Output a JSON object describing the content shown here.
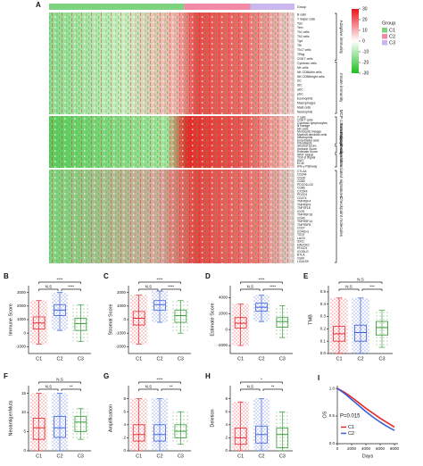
{
  "chart_data": [
    {
      "type": "heatmap",
      "panel": "A",
      "group_label": "Group",
      "groups": [
        {
          "name": "C1",
          "color": "#7ed37e"
        },
        {
          "name": "C2",
          "color": "#f08aa8"
        },
        {
          "name": "C3",
          "color": "#c9b7ee"
        }
      ],
      "color_scale": {
        "ticks": [
          30,
          20,
          10,
          0,
          -10,
          -20,
          -30
        ],
        "lim": [
          -30,
          30
        ],
        "high": "#e8141a",
        "mid": "#ffffff",
        "low": "#1fbf1f"
      },
      "sections": [
        {
          "rows": [
            "B cells",
            "T helper cells",
            "Tcm",
            "Tem",
            "Th1 cells",
            "Th2 cells",
            "Tgd",
            "Tfh",
            "Th17 cells",
            "TReg",
            "CD8 T cells",
            "Cytotoxic cells",
            "NK cells",
            "NK CD56dim cells",
            "NK CD56bright cells",
            "DC",
            "iDC",
            "aDC",
            "pDC",
            "Eosinophils",
            "Macrophages",
            "Mast cells",
            "Neutrophils"
          ],
          "groups": [
            {
              "label": "Adaptive immunity",
              "span": 11
            },
            {
              "label": "Innate immunity",
              "span": 12
            }
          ]
        },
        {
          "rows": [
            "T cells",
            "CD8 T cells",
            "Cytotoxic lymphocytes",
            "B lineage",
            "NK cells",
            "Monocytic lineage",
            "Myeloid dendritic cells",
            "Neutrophils",
            "Endothelial cells",
            "Fibroblasts",
            "Stromal Score",
            "Immune Score",
            "Estimate Score",
            "WNT Signal",
            "TGF-β Signal",
            "EMT",
            "ECM",
            "IFN-γ Pathway"
          ],
          "groups": [
            {
              "label": "MCP counter algorithm",
              "span": 10
            },
            {
              "label": "Estimate algorithm",
              "span": 3
            },
            {
              "label": "Tumor progressive associated signatures",
              "span": 5
            }
          ]
        },
        {
          "rows": [
            "CTLA4",
            "CD244",
            "CD28",
            "CD80",
            "PDCD1LG2",
            "CD86",
            "CXCR4",
            "PDCD1",
            "CD274",
            "TNFRSF4",
            "TNFRSF9",
            "TNFSF18",
            "ICOS",
            "TNFRSF18",
            "CD40",
            "TNFRSF14",
            "TNFRSF8",
            "CD27",
            "CD40LG",
            "TIGIT",
            "LAG3",
            "IDO1",
            "HAVCR2",
            "PDCD1",
            "ICOSLG",
            "BTLA",
            "VSIR",
            "LGALS9"
          ],
          "groups": [
            {
              "label": "Checkpoint molecules",
              "span": 28
            }
          ]
        }
      ]
    },
    {
      "type": "box",
      "panel": "B",
      "ylabel": "Immune Score",
      "categories": [
        "C1",
        "C2",
        "C3"
      ],
      "colors": [
        "#e8262c",
        "#3b5fd9",
        "#3a9a3a"
      ],
      "ylim": [
        -1500,
        3500
      ],
      "yticks": [
        -1000,
        0,
        1000,
        2000,
        3000
      ],
      "significance": [
        "N.S",
        "****",
        "****"
      ],
      "stats": [
        {
          "low": -800,
          "q1": 300,
          "median": 750,
          "q3": 1200,
          "high": 2400
        },
        {
          "low": 200,
          "q1": 1300,
          "median": 1700,
          "q3": 2100,
          "high": 3000
        },
        {
          "low": -600,
          "q1": 200,
          "median": 700,
          "q3": 1100,
          "high": 2100
        }
      ]
    },
    {
      "type": "box",
      "panel": "C",
      "ylabel": "Stromal Score",
      "categories": [
        "C1",
        "C2",
        "C3"
      ],
      "colors": [
        "#e8262c",
        "#3b5fd9",
        "#3a9a3a"
      ],
      "ylim": [
        -2500,
        2500
      ],
      "yticks": [
        -2000,
        -1000,
        0,
        1000,
        2000
      ],
      "significance": [
        "N.S",
        "****",
        "****"
      ],
      "stats": [
        {
          "low": -1800,
          "q1": -400,
          "median": 100,
          "q3": 600,
          "high": 1800
        },
        {
          "low": -200,
          "q1": 700,
          "median": 1100,
          "q3": 1400,
          "high": 2100
        },
        {
          "low": -1000,
          "q1": -200,
          "median": 300,
          "q3": 700,
          "high": 1400
        }
      ]
    },
    {
      "type": "box",
      "panel": "D",
      "ylabel": "Estimate Score",
      "categories": [
        "C1",
        "C2",
        "C3"
      ],
      "colors": [
        "#e8262c",
        "#3b5fd9",
        "#3a9a3a"
      ],
      "ylim": [
        -3000,
        5500
      ],
      "yticks": [
        -2000,
        0,
        2000,
        4000
      ],
      "significance": [
        "N.S",
        "****",
        "****"
      ],
      "stats": [
        {
          "low": -2000,
          "q1": 200,
          "median": 800,
          "q3": 1500,
          "high": 3200
        },
        {
          "low": 1000,
          "q1": 2300,
          "median": 2800,
          "q3": 3300,
          "high": 4300
        },
        {
          "low": -1000,
          "q1": 300,
          "median": 1000,
          "q3": 1500,
          "high": 3000
        }
      ]
    },
    {
      "type": "box",
      "panel": "E",
      "ylabel": "TMB",
      "categories": [
        "C1",
        "C2",
        "C3"
      ],
      "colors": [
        "#e8262c",
        "#3b5fd9",
        "#3a9a3a"
      ],
      "ylim": [
        0,
        0.55
      ],
      "yticks": [
        {
          "value": 0,
          "label": "0.0"
        },
        0.1,
        0.2,
        0.3,
        0.4,
        0.5
      ],
      "significance": [
        "N.S",
        "N.S",
        "***"
      ],
      "stats": [
        {
          "low": 0,
          "q1": 0.1,
          "median": 0.16,
          "q3": 0.22,
          "high": 0.45
        },
        {
          "low": 0,
          "q1": 0.1,
          "median": 0.17,
          "q3": 0.23,
          "high": 0.45
        },
        {
          "low": 0.05,
          "q1": 0.15,
          "median": 0.21,
          "q3": 0.26,
          "high": 0.35
        }
      ]
    },
    {
      "type": "box",
      "panel": "F",
      "ylabel": "NeoantigenMuts",
      "categories": [
        "C1",
        "C2",
        "C3"
      ],
      "colors": [
        "#e8262c",
        "#3b5fd9",
        "#3a9a3a"
      ],
      "ylim": [
        0,
        17
      ],
      "yticks": [
        0,
        5,
        10,
        15
      ],
      "significance": [
        "N.S",
        "N.S",
        "**"
      ],
      "stats": [
        {
          "low": 0,
          "q1": 3,
          "median": 6,
          "q3": 8.5,
          "high": 15
        },
        {
          "low": 0,
          "q1": 3.5,
          "median": 6,
          "q3": 9,
          "high": 15
        },
        {
          "low": 3,
          "q1": 5,
          "median": 7.5,
          "q3": 9,
          "high": 11
        }
      ]
    },
    {
      "type": "box",
      "panel": "G",
      "ylabel": "Amplification",
      "categories": [
        "C1",
        "C2",
        "C3"
      ],
      "colors": [
        "#e8262c",
        "#3b5fd9",
        "#3a9a3a"
      ],
      "ylim": [
        0,
        10
      ],
      "yticks": [
        0,
        2,
        4,
        6,
        8
      ],
      "significance": [
        "N.S",
        "****",
        "**"
      ],
      "stats": [
        {
          "low": 0,
          "q1": 1.5,
          "median": 2.5,
          "q3": 4,
          "high": 8
        },
        {
          "low": 0,
          "q1": 1.5,
          "median": 2.5,
          "q3": 4,
          "high": 8
        },
        {
          "low": 1,
          "q1": 2,
          "median": 3,
          "q3": 4,
          "high": 6
        }
      ]
    },
    {
      "type": "box",
      "panel": "H",
      "ylabel": "Deletion",
      "categories": [
        "C1",
        "C2",
        "C3"
      ],
      "colors": [
        "#e8262c",
        "#3b5fd9",
        "#3a9a3a"
      ],
      "ylim": [
        0,
        10
      ],
      "yticks": [
        0,
        2,
        4,
        6,
        8
      ],
      "significance": [
        "N.S",
        "*",
        "**"
      ],
      "stats": [
        {
          "low": 0,
          "q1": 1,
          "median": 2,
          "q3": 3.5,
          "high": 7.5
        },
        {
          "low": 0,
          "q1": 1.2,
          "median": 2.5,
          "q3": 3.8,
          "high": 8
        },
        {
          "low": 0,
          "q1": 0.5,
          "median": 2.5,
          "q3": 3.5,
          "high": 6
        }
      ]
    },
    {
      "type": "line",
      "panel": "I",
      "xlabel": "Days",
      "ylabel": "OS",
      "annotation": "P=0.015",
      "xlim": [
        0,
        8500
      ],
      "ylim": [
        0,
        1.05
      ],
      "xticks": [
        0,
        2000,
        4000,
        6000,
        8000
      ],
      "yticks": [
        {
          "value": 0,
          "label": "0.0"
        },
        0.5,
        {
          "value": 1,
          "label": "1.0"
        }
      ],
      "x": [
        0,
        1000,
        2000,
        3000,
        4000,
        5000,
        6000,
        7000,
        8000
      ],
      "series": [
        {
          "name": "C1",
          "color": "#e8262c",
          "values": [
            1,
            0.93,
            0.84,
            0.74,
            0.64,
            0.55,
            0.46,
            0.38,
            0.3
          ]
        },
        {
          "name": "C2",
          "color": "#3b5fd9",
          "values": [
            1,
            0.91,
            0.8,
            0.69,
            0.58,
            0.48,
            0.39,
            0.31,
            0.24
          ]
        }
      ]
    }
  ]
}
